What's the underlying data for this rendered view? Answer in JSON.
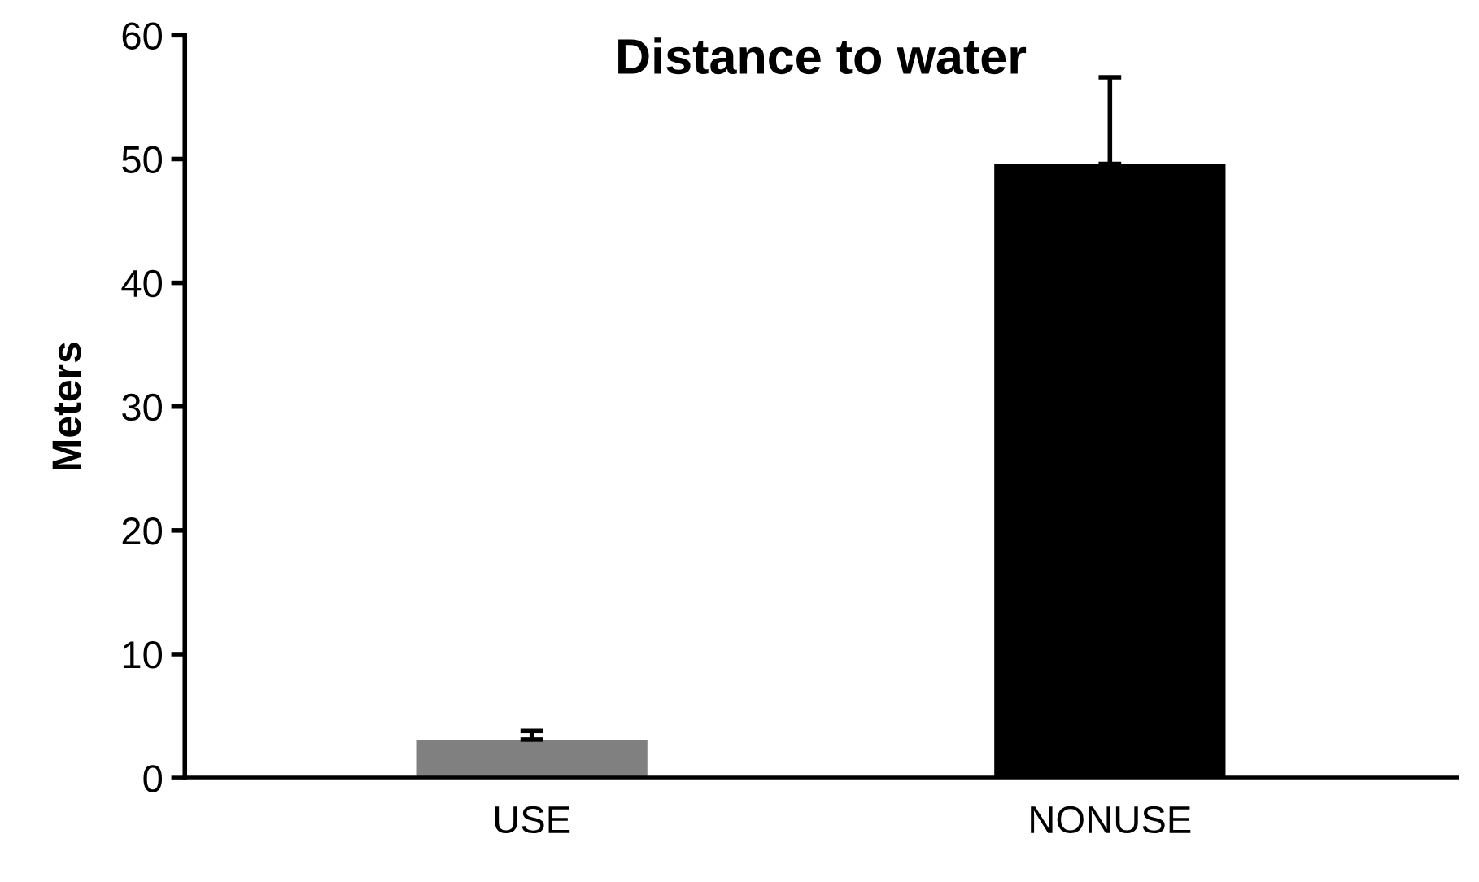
{
  "chart_data": {
    "type": "bar",
    "title": "Distance to water",
    "ylabel": "Meters",
    "categories": [
      "USE",
      "NONUSE"
    ],
    "values": [
      3.1,
      49.6
    ],
    "colors": [
      "#808080",
      "#000000"
    ],
    "errors": [
      [
        3.1,
        3.8
      ],
      [
        49.6,
        56.6
      ]
    ],
    "ylim": [
      0,
      60
    ],
    "yticks": [
      0,
      10,
      20,
      30,
      40,
      50,
      60
    ],
    "grid": false,
    "legend": false
  }
}
